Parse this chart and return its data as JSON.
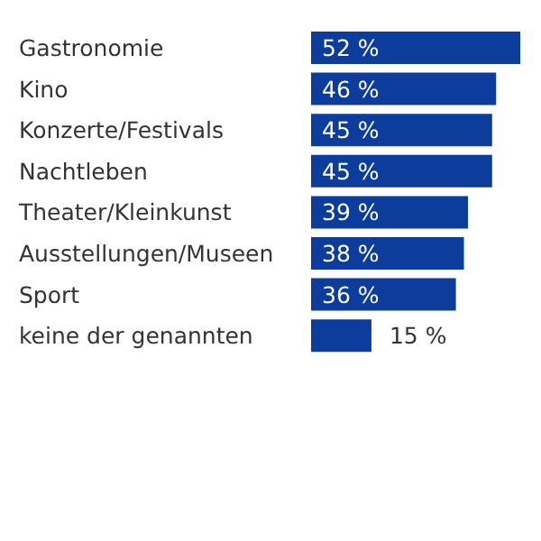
{
  "chart_data": {
    "type": "bar",
    "orientation": "horizontal",
    "categories": [
      "Gastronomie",
      "Kino",
      "Konzerte/Festivals",
      "Nachtleben",
      "Theater/Kleinkunst",
      "Ausstellungen/Museen",
      "Sport",
      "keine der genannten"
    ],
    "values": [
      52,
      46,
      45,
      45,
      39,
      38,
      36,
      15
    ],
    "value_labels": [
      "52 %",
      "46 %",
      "45 %",
      "45 %",
      "39 %",
      "38 %",
      "36 %",
      "15 %"
    ],
    "color": "#0c3c9c"
  }
}
